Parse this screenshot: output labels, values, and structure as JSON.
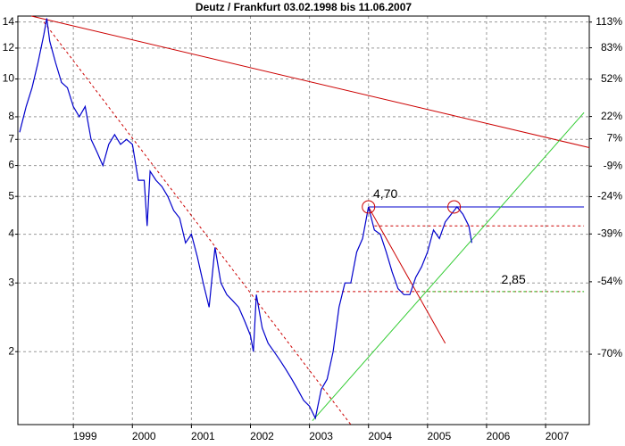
{
  "chart_data": {
    "type": "line",
    "title": "Deutz / Frankfurt 03.02.1998 bis 11.06.2007",
    "ylog": true,
    "ylim": [
      1.3,
      14.5
    ],
    "yticks": [
      2,
      3,
      4,
      5,
      6,
      7,
      8,
      10,
      12,
      14
    ],
    "y2log": true,
    "y2lim": [
      -80.2,
      120.7
    ],
    "y2ticks": [
      {
        "value": 113,
        "label": "113%"
      },
      {
        "value": 83,
        "label": "83%"
      },
      {
        "value": 52,
        "label": "52%"
      },
      {
        "value": 22,
        "label": "22%"
      },
      {
        "value": 7,
        "label": "7%"
      },
      {
        "value": -9,
        "label": "-9%"
      },
      {
        "value": -24,
        "label": "-24%"
      },
      {
        "value": -39,
        "label": "-39%"
      },
      {
        "value": -54,
        "label": "-54%"
      },
      {
        "value": -70,
        "label": "-70%"
      }
    ],
    "xlim": [
      1998.06,
      2007.74
    ],
    "xticks": [
      1999,
      2000,
      2001,
      2002,
      2003,
      2004,
      2005,
      2006,
      2007
    ],
    "grid": true,
    "series": [
      {
        "color": "#0000cc",
        "x": [
          1998.09,
          1998.2,
          1998.3,
          1998.4,
          1998.5,
          1998.55,
          1998.6,
          1998.7,
          1998.8,
          1998.9,
          1999.0,
          1999.1,
          1999.2,
          1999.3,
          1999.4,
          1999.5,
          1999.6,
          1999.7,
          1999.8,
          1999.9,
          2000.0,
          2000.1,
          2000.2,
          2000.25,
          2000.3,
          2000.4,
          2000.5,
          2000.6,
          2000.7,
          2000.8,
          2000.9,
          2001.0,
          2001.1,
          2001.2,
          2001.3,
          2001.4,
          2001.5,
          2001.6,
          2001.7,
          2001.8,
          2001.9,
          2002.0,
          2002.05,
          2002.1,
          2002.2,
          2002.3,
          2002.4,
          2002.5,
          2002.6,
          2002.7,
          2002.8,
          2002.9,
          2003.0,
          2003.1,
          2003.2,
          2003.3,
          2003.4,
          2003.5,
          2003.6,
          2003.7,
          2003.8,
          2003.9,
          2004.0,
          2004.1,
          2004.2,
          2004.3,
          2004.4,
          2004.5,
          2004.6,
          2004.7,
          2004.8,
          2004.9,
          2005.0,
          2005.1,
          2005.2,
          2005.3,
          2005.4,
          2005.5,
          2005.6,
          2005.7,
          2005.75
        ],
        "values": [
          7.3,
          8.5,
          9.5,
          11.0,
          13.0,
          14.3,
          12.5,
          11.0,
          9.8,
          9.5,
          8.5,
          8.0,
          8.5,
          7.0,
          6.5,
          6.0,
          6.8,
          7.2,
          6.8,
          7.0,
          6.8,
          5.5,
          5.5,
          4.2,
          5.8,
          5.5,
          5.3,
          5.0,
          4.6,
          4.4,
          3.8,
          4.0,
          3.5,
          3.0,
          2.6,
          3.7,
          3.0,
          2.8,
          2.7,
          2.6,
          2.4,
          2.2,
          2.0,
          2.8,
          2.3,
          2.1,
          2.0,
          1.9,
          1.8,
          1.7,
          1.6,
          1.5,
          1.45,
          1.35,
          1.6,
          1.7,
          2.0,
          2.6,
          3.0,
          3.0,
          3.6,
          3.9,
          4.7,
          4.1,
          4.0,
          3.6,
          3.2,
          2.9,
          2.8,
          2.8,
          3.1,
          3.3,
          3.6,
          4.1,
          3.9,
          4.3,
          4.5,
          4.7,
          4.5,
          4.2,
          3.8
        ]
      }
    ],
    "lines": [
      {
        "x": [
          1998.29,
          2007.74
        ],
        "y": [
          14.5,
          6.67
        ],
        "color": "#cc0000",
        "dash": false
      },
      {
        "x": [
          1998.5,
          2003.7
        ],
        "y": [
          14.0,
          1.3
        ],
        "color": "#cc0000",
        "dash": true
      },
      {
        "x": [
          2002.1,
          2007.65
        ],
        "y": [
          2.85,
          2.85
        ],
        "color": "#cc0000",
        "dash": true
      },
      {
        "x": [
          2004.9,
          2007.65
        ],
        "y": [
          2.85,
          2.85
        ],
        "color": "#33cc33",
        "dash": true
      },
      {
        "x": [
          2004.0,
          2007.65
        ],
        "y": [
          4.7,
          4.7
        ],
        "color": "#0000cc",
        "dash": false
      },
      {
        "x": [
          2004.1,
          2007.65
        ],
        "y": [
          4.2,
          4.2
        ],
        "color": "#cc0000",
        "dash": true
      },
      {
        "x": [
          2003.05,
          2007.65
        ],
        "y": [
          1.33,
          8.2
        ],
        "color": "#33cc33",
        "dash": false
      },
      {
        "x": [
          2004.0,
          2005.3
        ],
        "y": [
          4.7,
          2.1
        ],
        "color": "#cc0000",
        "dash": false
      }
    ],
    "circles": [
      {
        "x": 2004.0,
        "y": 4.7
      },
      {
        "x": 2005.45,
        "y": 4.7
      }
    ],
    "annotations": [
      {
        "text": "4,70",
        "x": 2004.08,
        "y": 5.05,
        "color": "#0000cc"
      },
      {
        "text": "2,85",
        "x": 2006.25,
        "y": 3.05,
        "color": "#33cc33"
      }
    ]
  }
}
